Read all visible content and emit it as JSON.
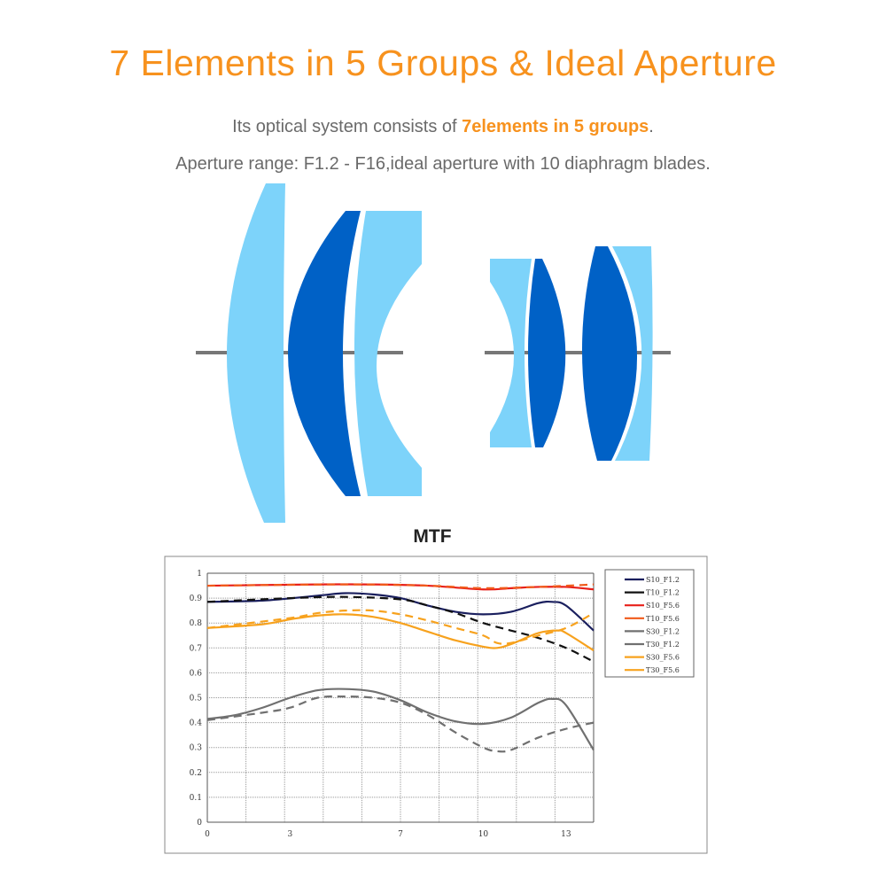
{
  "header": {
    "title": "7 Elements in 5 Groups & Ideal Aperture",
    "line1_prefix": "Its optical system consists of ",
    "line1_highlight": "7elements in 5 groups",
    "line1_suffix": ".",
    "line2": "Aperture range: F1.2 - F16,ideal aperture with 10 diaphragm blades."
  },
  "colors": {
    "accent": "#f7921e",
    "lens_light": "#7dd3fa",
    "lens_dark": "#0061c6",
    "axis_line": "#777777"
  },
  "lens_diagram": {
    "elements": 7,
    "groups": 5
  },
  "chart_data": {
    "type": "line",
    "title": "MTF",
    "xlabel": "",
    "ylabel": "",
    "xlim": [
      0,
      14
    ],
    "ylim": [
      0,
      1
    ],
    "x_tick_labels": [
      "0",
      "3",
      "7",
      "10",
      "13"
    ],
    "x_tick_values": [
      0,
      3,
      7,
      10,
      13
    ],
    "y_tick_labels": [
      "0",
      "0.1",
      "0.2",
      "0.3",
      "0.4",
      "0.5",
      "0.6",
      "0.7",
      "0.8",
      "0.9",
      "1"
    ],
    "grid": true,
    "legend_placement": "right",
    "series": [
      {
        "name": "S10_F1.2",
        "color": "#1a1f5e",
        "dash": false,
        "x": [
          0,
          2,
          4,
          5,
          6,
          7,
          8,
          9,
          10,
          11,
          12,
          12.5,
          13,
          14
        ],
        "y": [
          0.885,
          0.89,
          0.91,
          0.92,
          0.915,
          0.9,
          0.87,
          0.845,
          0.835,
          0.845,
          0.88,
          0.885,
          0.87,
          0.77
        ]
      },
      {
        "name": "T10_F1.2",
        "color": "#111111",
        "dash": true,
        "x": [
          0,
          3,
          5,
          7,
          8,
          9,
          10,
          11,
          12,
          13,
          14
        ],
        "y": [
          0.885,
          0.9,
          0.905,
          0.895,
          0.87,
          0.84,
          0.8,
          0.77,
          0.74,
          0.7,
          0.645
        ]
      },
      {
        "name": "S10_F5.6",
        "color": "#e8201a",
        "dash": false,
        "x": [
          0,
          4,
          6,
          8,
          10,
          11,
          12,
          13,
          14
        ],
        "y": [
          0.95,
          0.955,
          0.955,
          0.95,
          0.935,
          0.94,
          0.945,
          0.945,
          0.935
        ]
      },
      {
        "name": "T10_F5.6",
        "color": "#f05a1a",
        "dash": true,
        "x": [
          0,
          5,
          8,
          10,
          12,
          14
        ],
        "y": [
          0.95,
          0.955,
          0.95,
          0.94,
          0.945,
          0.955
        ]
      },
      {
        "name": "S30_F1.2",
        "color": "#707070",
        "dash": false,
        "x": [
          0,
          1,
          2,
          3,
          4,
          5,
          6,
          7,
          8,
          9,
          10,
          11,
          12,
          12.5,
          13,
          14
        ],
        "y": [
          0.415,
          0.43,
          0.46,
          0.5,
          0.53,
          0.535,
          0.525,
          0.49,
          0.44,
          0.405,
          0.395,
          0.42,
          0.48,
          0.495,
          0.47,
          0.29
        ]
      },
      {
        "name": "T30_F1.2",
        "color": "#707070",
        "dash": true,
        "x": [
          0,
          2,
          3,
          4,
          5,
          6,
          7,
          8,
          9,
          10,
          10.5,
          11,
          12,
          13,
          14
        ],
        "y": [
          0.41,
          0.44,
          0.46,
          0.5,
          0.505,
          0.5,
          0.48,
          0.43,
          0.36,
          0.3,
          0.285,
          0.29,
          0.34,
          0.375,
          0.4
        ]
      },
      {
        "name": "S30_F5.6",
        "color": "#f7a21e",
        "dash": false,
        "x": [
          0,
          2,
          3,
          4,
          5,
          6,
          7,
          8,
          9,
          10,
          10.5,
          11,
          12,
          12.7,
          13,
          14
        ],
        "y": [
          0.78,
          0.795,
          0.815,
          0.83,
          0.835,
          0.825,
          0.8,
          0.765,
          0.73,
          0.705,
          0.7,
          0.715,
          0.76,
          0.77,
          0.76,
          0.69
        ]
      },
      {
        "name": "T30_F5.6",
        "color": "#f7a21e",
        "dash": true,
        "x": [
          0,
          3,
          4,
          5,
          6,
          7,
          8,
          9,
          10,
          10.5,
          11,
          12,
          13,
          14
        ],
        "y": [
          0.78,
          0.82,
          0.84,
          0.85,
          0.85,
          0.835,
          0.81,
          0.78,
          0.75,
          0.72,
          0.72,
          0.75,
          0.78,
          0.84
        ]
      }
    ]
  }
}
